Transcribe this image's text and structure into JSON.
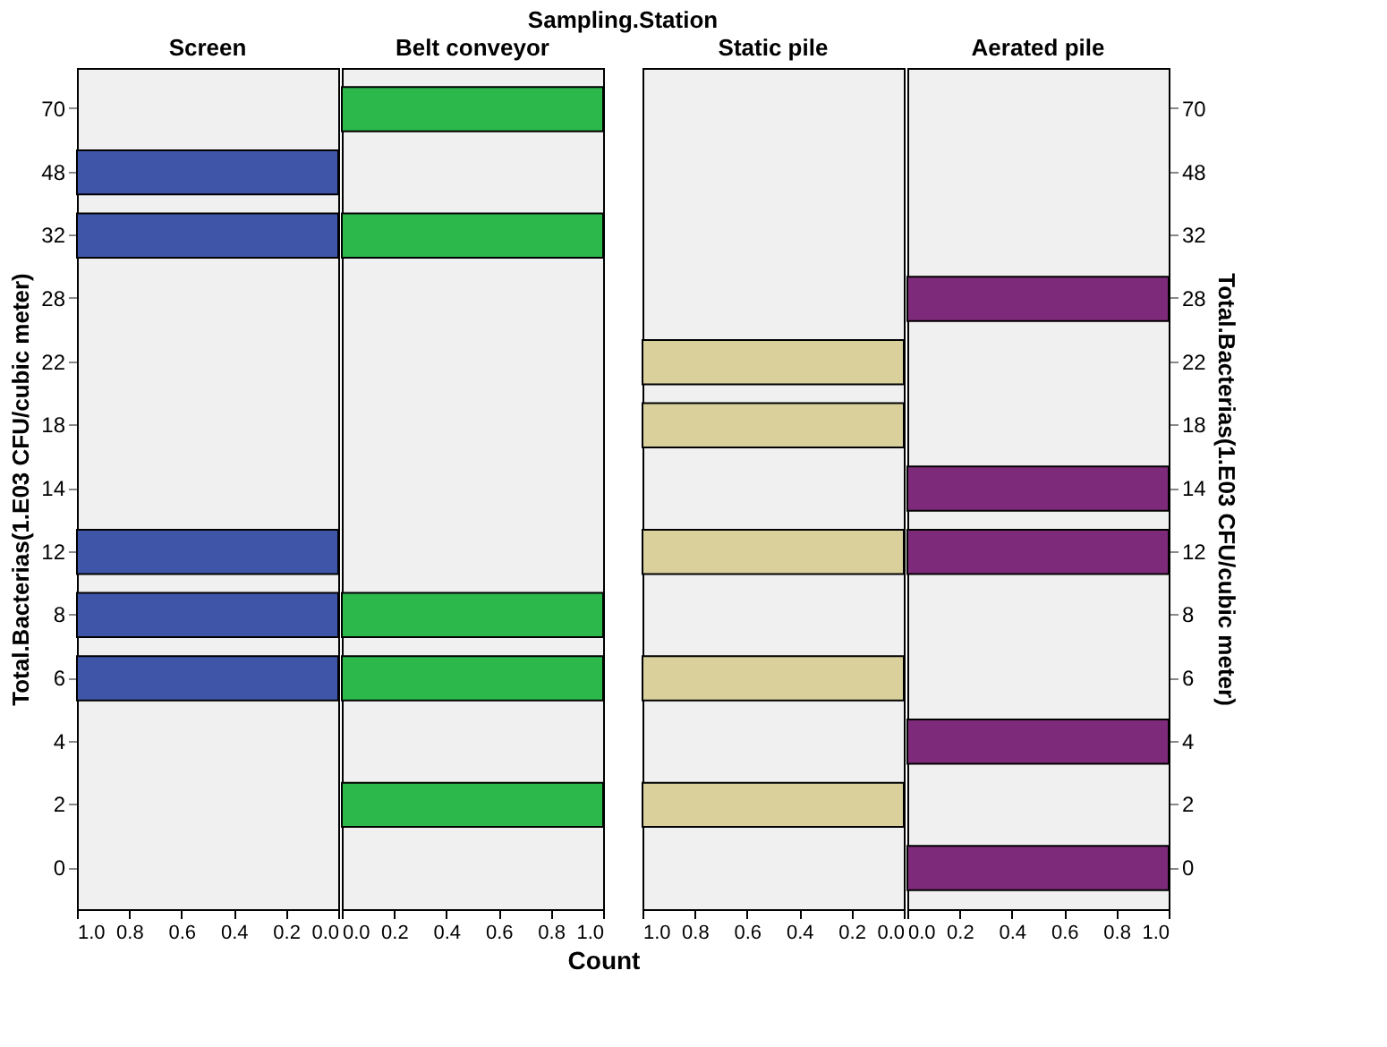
{
  "chart_data": [
    {
      "type": "bar",
      "orientation": "horizontal",
      "title": "Screen",
      "annotations": [
        "Sampling.Station"
      ],
      "ylabel": "Total.Bacterias(1.E03 CFU/cubic meter)",
      "categories": [
        "70",
        "48",
        "32",
        "28",
        "22",
        "18",
        "14",
        "12",
        "8",
        "6",
        "4",
        "2",
        "0"
      ],
      "values": [
        null,
        1,
        1,
        null,
        null,
        null,
        null,
        1,
        1,
        1,
        null,
        null,
        null
      ],
      "color": "#3f56a8",
      "xlim": [
        1,
        0
      ],
      "xticks": [
        {
          "value": 1,
          "label": "1.0"
        },
        {
          "value": 0.8,
          "label": "0.8"
        },
        {
          "value": 0.6,
          "label": "0.6"
        },
        {
          "value": 0.4,
          "label": "0.4"
        },
        {
          "value": 0.2,
          "label": "0.2"
        },
        {
          "value": 0,
          "label": "0.0"
        }
      ]
    },
    {
      "type": "bar",
      "orientation": "horizontal",
      "title": "Belt conveyor",
      "xlabel": "Count",
      "tick_labels": "x",
      "categories": [
        "70",
        "48",
        "32",
        "28",
        "22",
        "18",
        "14",
        "12",
        "8",
        "6",
        "4",
        "2",
        "0"
      ],
      "values": [
        1,
        null,
        1,
        null,
        null,
        null,
        null,
        null,
        1,
        1,
        null,
        1,
        null
      ],
      "color": "#2db84b",
      "xlim": [
        0,
        1
      ],
      "xticks": [
        {
          "value": 0,
          "label": "0.0"
        },
        {
          "value": 0.2,
          "label": "0.2"
        },
        {
          "value": 0.4,
          "label": "0.4"
        },
        {
          "value": 0.6,
          "label": "0.6"
        },
        {
          "value": 0.8,
          "label": "0.8"
        },
        {
          "value": 1,
          "label": "1.0"
        }
      ]
    },
    {
      "type": "bar",
      "orientation": "horizontal",
      "title": "Static pile",
      "tick_labels": "x",
      "categories": [
        "70",
        "48",
        "32",
        "28",
        "22",
        "18",
        "14",
        "12",
        "8",
        "6",
        "4",
        "2",
        "0"
      ],
      "values": [
        null,
        null,
        null,
        null,
        1,
        1,
        null,
        1,
        null,
        1,
        null,
        1,
        null
      ],
      "color": "#d9d09b",
      "xlim": [
        1,
        0
      ],
      "xticks": [
        {
          "value": 1,
          "label": "1.0"
        },
        {
          "value": 0.8,
          "label": "0.8"
        },
        {
          "value": 0.6,
          "label": "0.6"
        },
        {
          "value": 0.4,
          "label": "0.4"
        },
        {
          "value": 0.2,
          "label": "0.2"
        },
        {
          "value": 0,
          "label": "0.0"
        }
      ]
    },
    {
      "type": "bar",
      "orientation": "horizontal",
      "title": "Aerated pile",
      "y2label": "Total.Bacterias(1.E03 CFU/cubic meter)",
      "categories": [
        "70",
        "48",
        "32",
        "28",
        "22",
        "18",
        "14",
        "12",
        "8",
        "6",
        "4",
        "2",
        "0"
      ],
      "values": [
        null,
        null,
        null,
        1,
        null,
        null,
        1,
        1,
        null,
        null,
        1,
        null,
        1
      ],
      "color": "#7e2a7a",
      "xlim": [
        0,
        1
      ],
      "xticks": [
        {
          "value": 0,
          "label": "0.0"
        },
        {
          "value": 0.2,
          "label": "0.2"
        },
        {
          "value": 0.4,
          "label": "0.4"
        },
        {
          "value": 0.6,
          "label": "0.6"
        },
        {
          "value": 0.8,
          "label": "0.8"
        },
        {
          "value": 1,
          "label": "1.0"
        }
      ]
    }
  ]
}
